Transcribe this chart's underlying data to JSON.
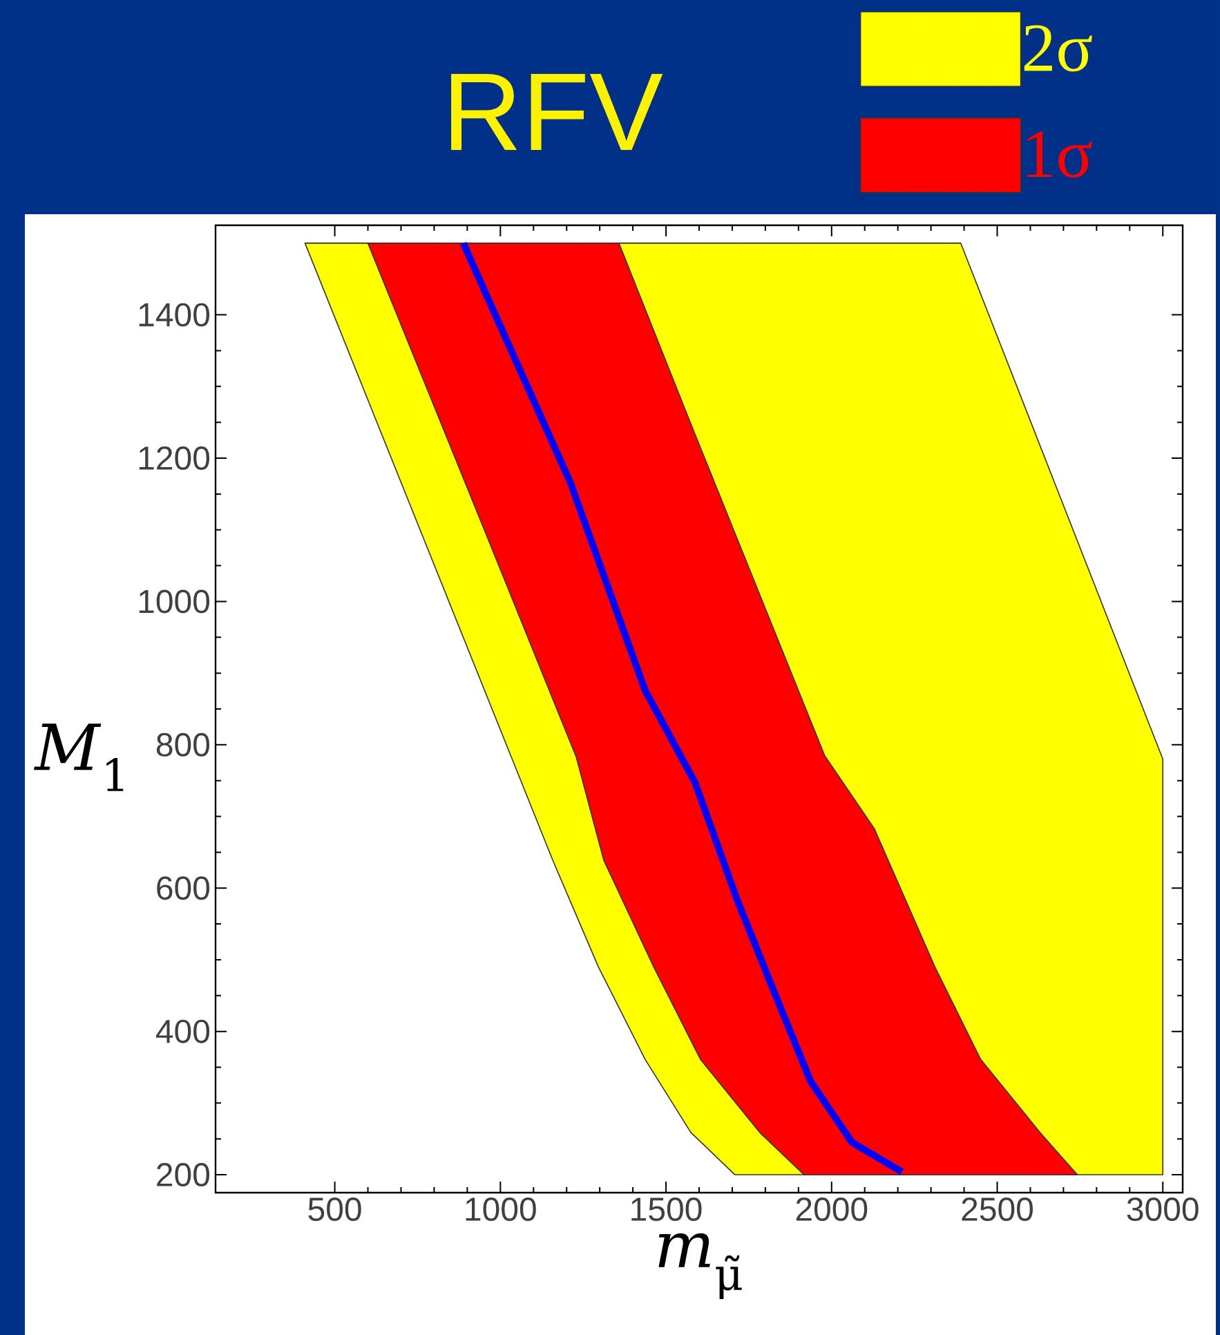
{
  "chart_data": {
    "type": "area",
    "title": "RFV",
    "xlabel": "*m*$_{μ̃}$",
    "ylabel": "*M*$_{1}$",
    "xlim": [
      140,
      3060
    ],
    "ylim": [
      175,
      1525
    ],
    "xticks": [
      500,
      1000,
      1500,
      2000,
      2500,
      3000
    ],
    "yticks": [
      200,
      400,
      600,
      800,
      1000,
      1200,
      1400
    ],
    "legend": "top right",
    "series": [
      {
        "name": "2σ",
        "color": "#ffff00",
        "x": [
          410,
          2390,
          3000,
          3000,
          1708,
          1575,
          1437,
          1296,
          1158,
          1033
        ],
        "values": [
          1500,
          1500,
          780,
          200,
          200,
          259,
          361,
          490,
          639,
          783
        ]
      },
      {
        "name": "1σ",
        "color": "#ff0000",
        "x": [
          1917,
          1783,
          1604,
          1463,
          1312,
          1229,
          962,
          600,
          1358,
          1575,
          1979,
          2129,
          2312,
          2450,
          2629,
          2742
        ],
        "values": [
          200,
          259,
          361,
          490,
          639,
          783,
          1088,
          1500,
          1500,
          1248,
          785,
          683,
          490,
          361,
          259,
          200
        ]
      },
      {
        "type": "line",
        "color": "#0000ff",
        "x": [
          888,
          1212,
          1437,
          1588,
          1713,
          1825,
          1937,
          2062,
          2212
        ],
        "values": [
          1500,
          1165,
          876,
          747,
          586,
          457,
          330,
          245,
          204
        ]
      }
    ]
  }
}
